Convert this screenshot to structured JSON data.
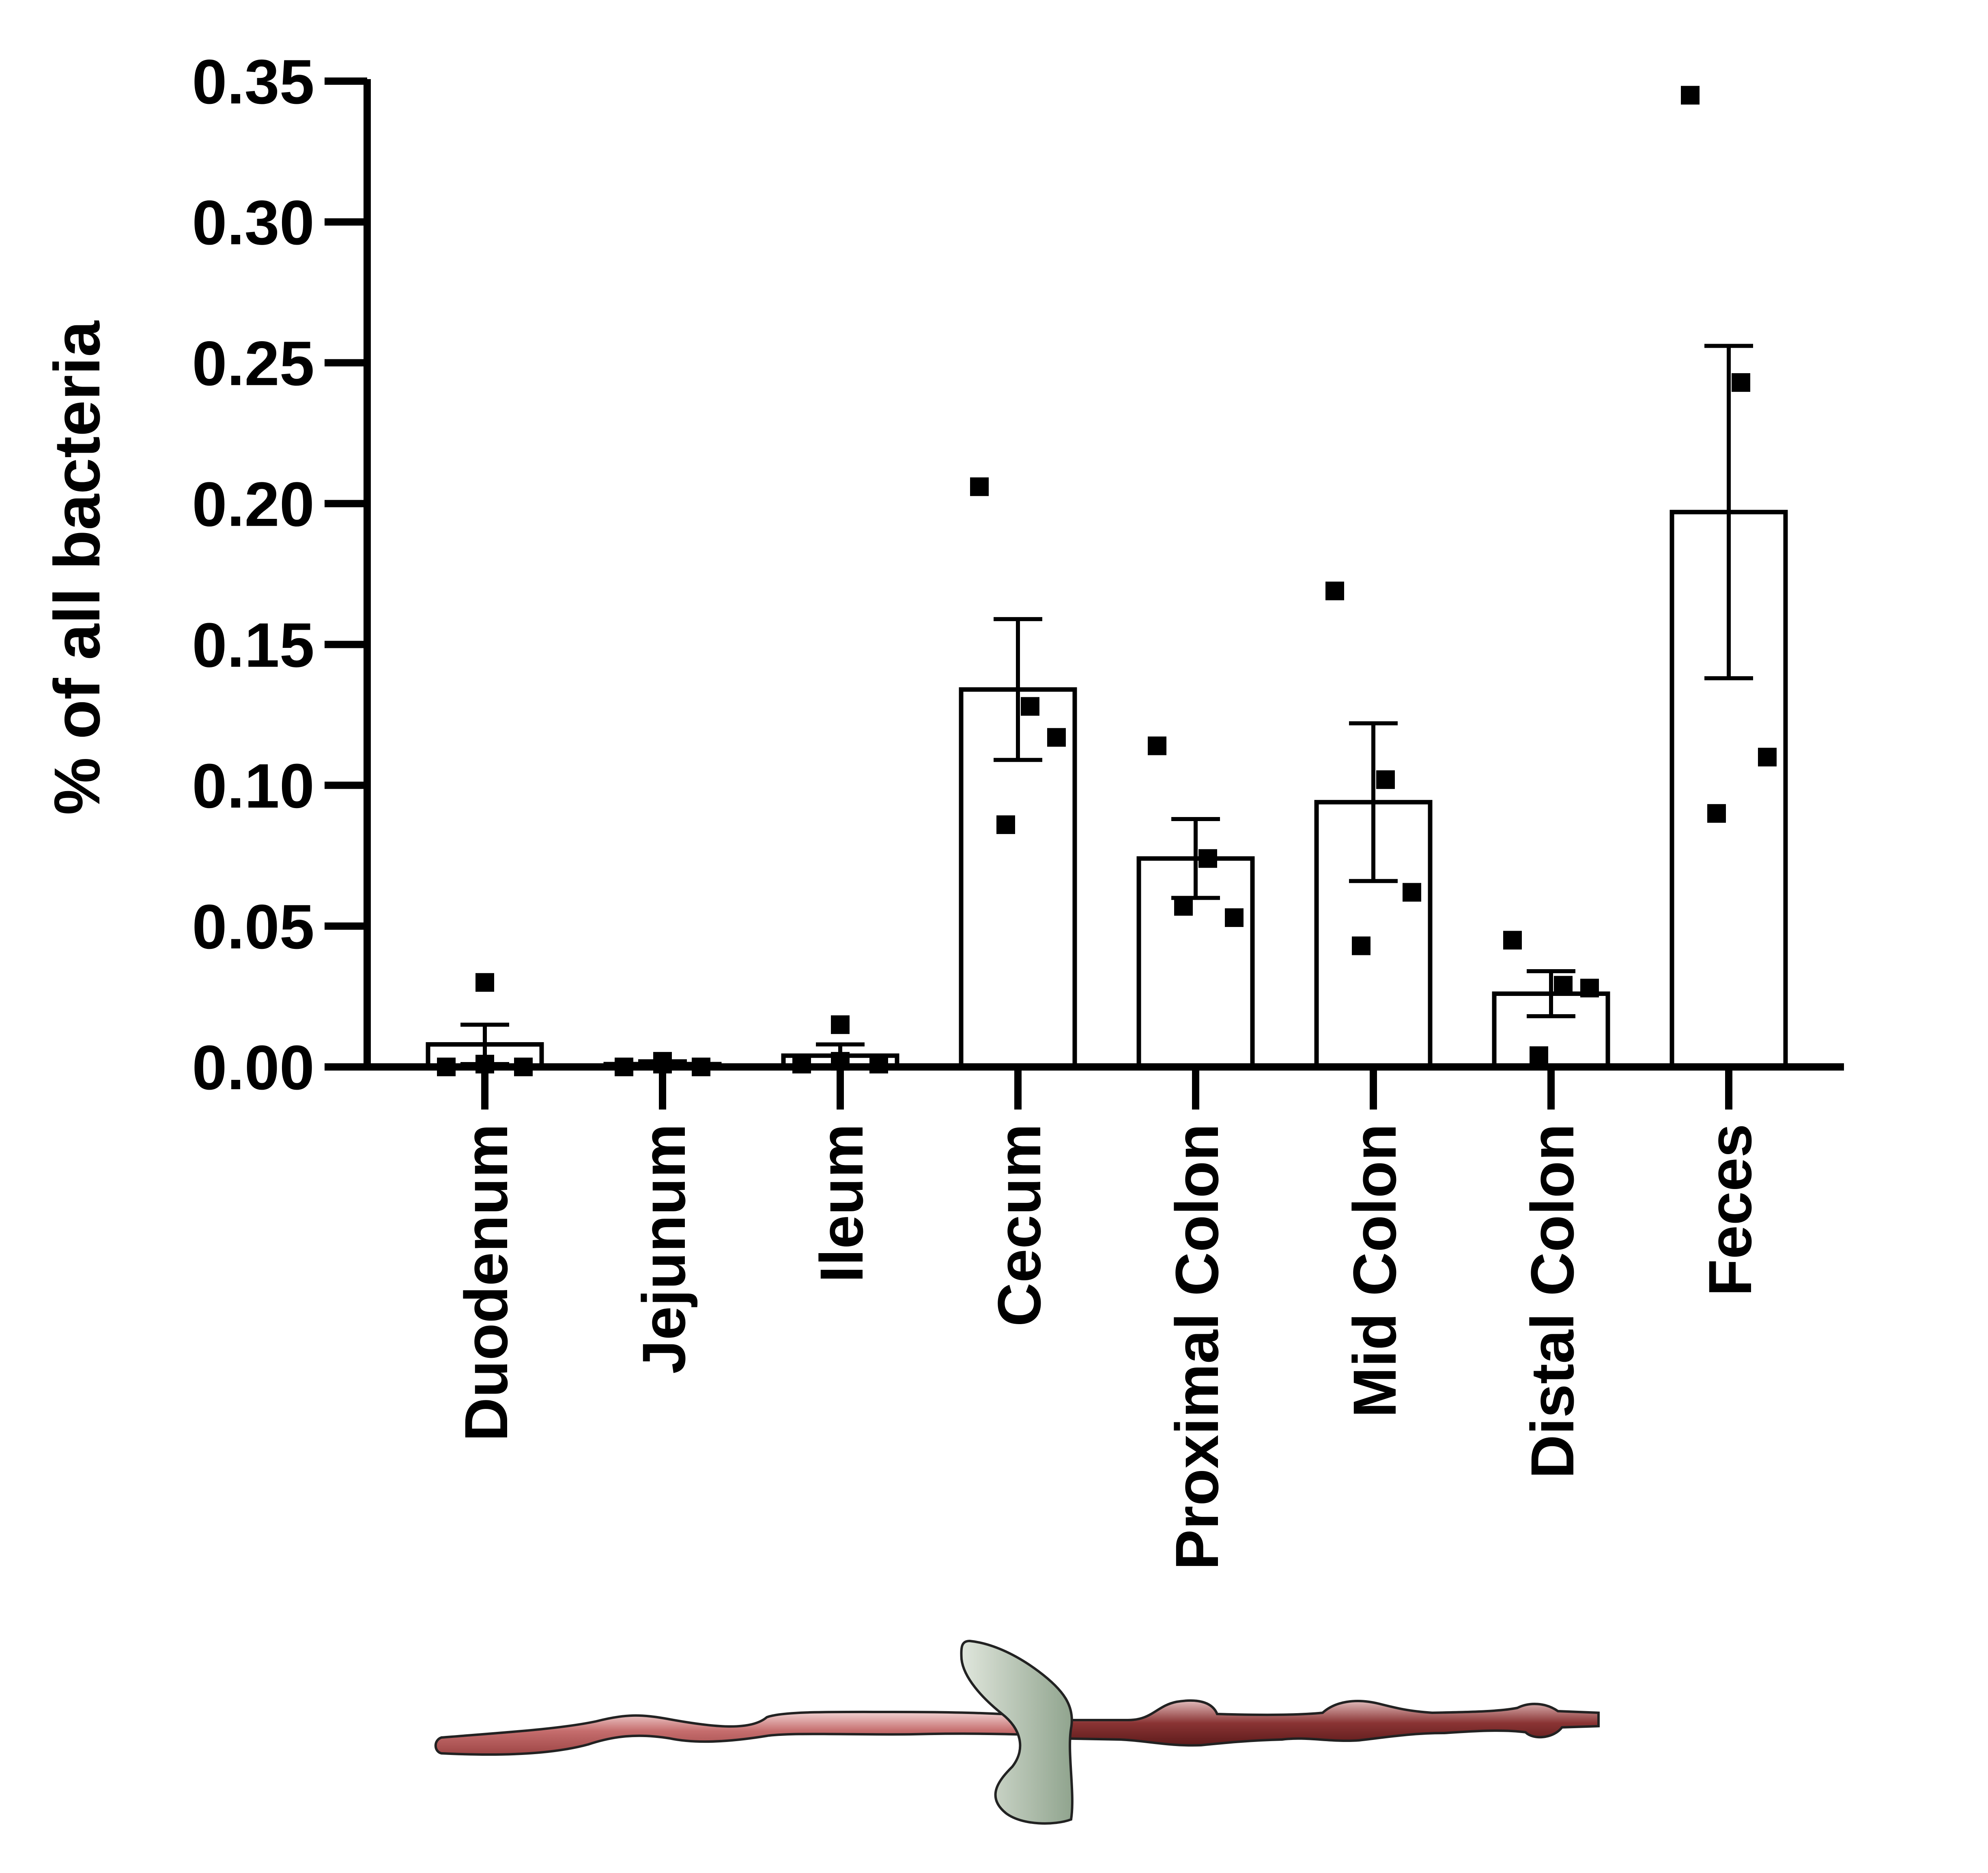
{
  "chart_data": {
    "type": "bar",
    "title": "",
    "xlabel": "",
    "ylabel": "% of all bacteria",
    "ylim": [
      0,
      0.35
    ],
    "yticks": [
      "0.00",
      "0.05",
      "0.10",
      "0.15",
      "0.20",
      "0.25",
      "0.30",
      "0.35"
    ],
    "grid": false,
    "legend": "none",
    "bar_fill": "#ffffff",
    "bar_stroke": "#000000",
    "categories": [
      "Duodenum",
      "Jejunum",
      "Ileum",
      "Cecum",
      "Proximal Colon",
      "Mid Colon",
      "Distal Colon",
      "Feces"
    ],
    "means": [
      0.008,
      0.001,
      0.004,
      0.134,
      0.074,
      0.094,
      0.026,
      0.197
    ],
    "sem": [
      0.007,
      0.001,
      0.004,
      0.025,
      0.014,
      0.028,
      0.008,
      0.059
    ],
    "points": [
      [
        0.0,
        0.03,
        0.0,
        0.001
      ],
      [
        0.0,
        0.002,
        0.0,
        0.001
      ],
      [
        0.001,
        0.015,
        0.001,
        0.002
      ],
      [
        0.206,
        0.128,
        0.117,
        0.086
      ],
      [
        0.114,
        0.074,
        0.053,
        0.057
      ],
      [
        0.169,
        0.102,
        0.062,
        0.043
      ],
      [
        0.045,
        0.029,
        0.028,
        0.004
      ],
      [
        0.345,
        0.243,
        0.11,
        0.09
      ]
    ],
    "illustration": {
      "small_intestine_color": "#b85c5c",
      "cecum_color": "#a8b8a4",
      "colon_color": "#7a2a2a"
    }
  }
}
